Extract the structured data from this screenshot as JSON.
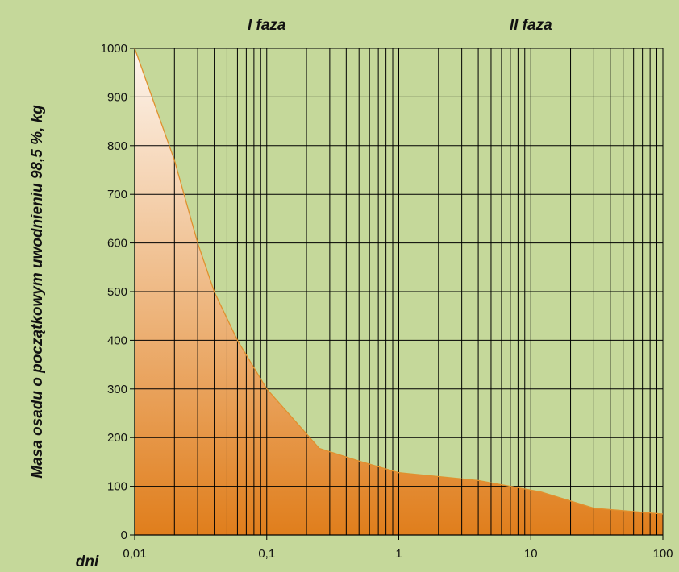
{
  "chart_data": {
    "type": "area",
    "title": "",
    "xlabel": "dni",
    "ylabel": "Masa osadu o początkowym uwodnieniu 98,5 %, kg",
    "x_scale": "log",
    "xlim": [
      0.01,
      100
    ],
    "ylim": [
      0,
      1000
    ],
    "x_ticks": [
      "0,01",
      "0,1",
      "1",
      "10",
      "100"
    ],
    "y_ticks": [
      "0",
      "100",
      "200",
      "300",
      "400",
      "500",
      "600",
      "700",
      "800",
      "900",
      "1000"
    ],
    "phase_labels": [
      {
        "text": "I faza",
        "x": 0.1
      },
      {
        "text": "II faza",
        "x": 10
      }
    ],
    "grid": true,
    "colors": {
      "background": "#c5d89a",
      "fill_top": "#fdf5ee",
      "fill_bottom": "#e07e1c",
      "line": "#e0902e",
      "grid": "#000000"
    },
    "series": [
      {
        "x": [
          0.01,
          0.02,
          0.03,
          0.04,
          0.06,
          0.1,
          0.25,
          0.5,
          1,
          2,
          4,
          7,
          12,
          30,
          100
        ],
        "y": [
          1000,
          770,
          600,
          500,
          400,
          300,
          178,
          152,
          128,
          120,
          112,
          100,
          88,
          55,
          43
        ]
      }
    ]
  }
}
